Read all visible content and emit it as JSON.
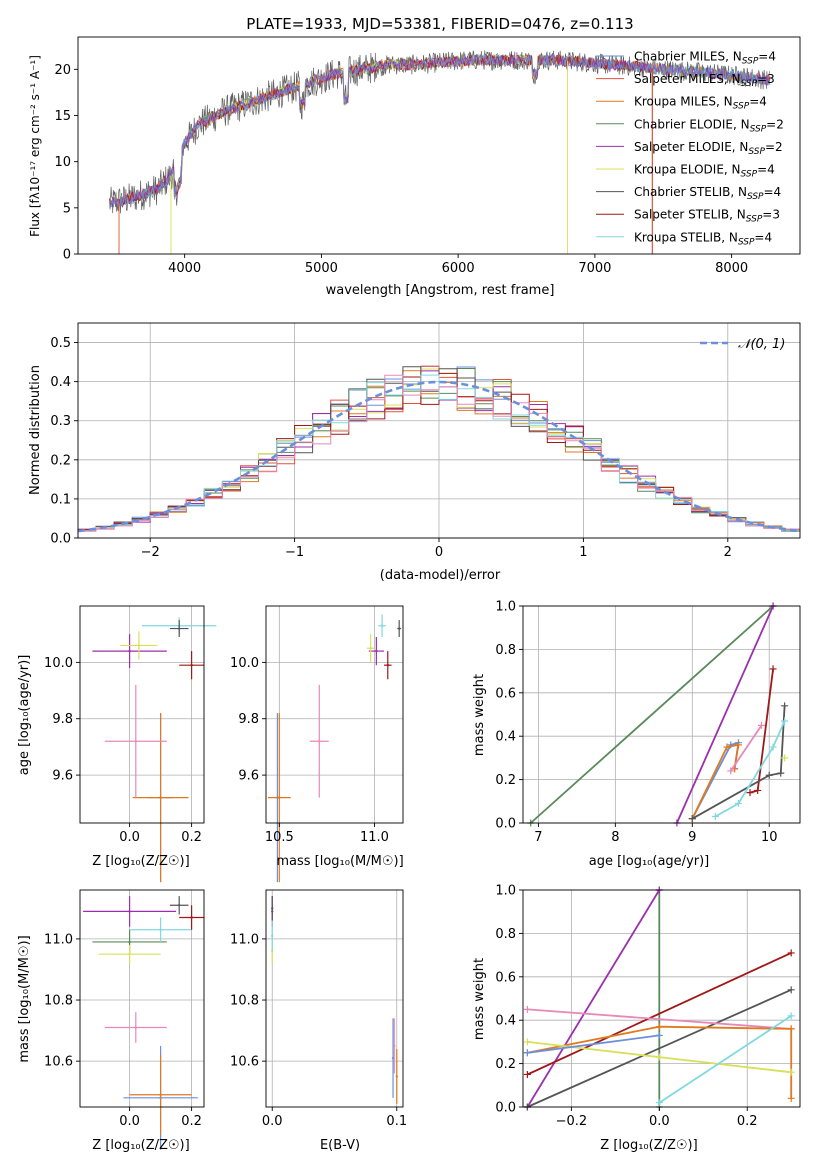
{
  "colors": {
    "chabrier_miles": "#6a8fdc",
    "salpeter_miles": "#e0533a",
    "kroupa_miles": "#e07a1f",
    "chabrier_elodie": "#5a8a5a",
    "salpeter_elodie": "#9b2fae",
    "kroupa_elodie": "#d8e05a",
    "chabrier_stelib": "#555555",
    "salpeter_stelib": "#a01818",
    "kroupa_stelib": "#80d8e0",
    "pink": "#e888b8",
    "grid": "#b0b0b0"
  },
  "chart_data": [
    {
      "id": "spectrum",
      "type": "line",
      "title": "PLATE=1933, MJD=53381, FIBERID=0476, z=0.113",
      "xlabel": "wavelength [Angstrom, rest frame]",
      "ylabel": "Flux [fλ10⁻¹⁷ erg cm⁻² s⁻¹ A⁻¹]",
      "xlim": [
        3220,
        8500
      ],
      "ylim": [
        0,
        23.5
      ],
      "xticks": [
        4000,
        5000,
        6000,
        7000,
        8000
      ],
      "yticks": [
        0,
        5,
        10,
        15,
        20
      ],
      "grid": false,
      "legend_position": "top-right",
      "legend": [
        "Chabrier MILES, N_SSP=4",
        "Salpeter MILES, N_SSP=3",
        "Kroupa MILES, N_SSP=4",
        "Chabrier ELODIE, N_SSP=2",
        "Salpeter ELODIE, N_SSP=2",
        "Kroupa ELODIE, N_SSP=4",
        "Chabrier STELIB, N_SSP=4",
        "Salpeter STELIB, N_SSP=3",
        "Kroupa STELIB, N_SSP=4"
      ],
      "continuum": {
        "x": [
          3450,
          3600,
          3800,
          3900,
          4000,
          4100,
          4300,
          4500,
          4700,
          4900,
          5100,
          5300,
          5500,
          5700,
          5900,
          6100,
          6300,
          6500,
          6700,
          6900,
          7100,
          7300,
          7500,
          7700,
          7900,
          8100,
          8280
        ],
        "y": [
          5.5,
          6.0,
          7.0,
          8.5,
          12.0,
          14.0,
          15.5,
          16.5,
          17.5,
          18.5,
          19.5,
          20.0,
          20.5,
          20.5,
          20.8,
          21.0,
          21.0,
          21.0,
          21.0,
          20.8,
          20.5,
          20.3,
          20.0,
          19.8,
          19.5,
          19.2,
          18.8
        ]
      }
    },
    {
      "id": "residuals",
      "type": "histogram",
      "xlabel": "(data-model)/error",
      "ylabel": "Normed distribution",
      "xlim": [
        -2.5,
        2.5
      ],
      "ylim": [
        0,
        0.55
      ],
      "xticks": [
        -2,
        -1,
        0,
        1,
        2
      ],
      "yticks": [
        0.0,
        0.1,
        0.2,
        0.3,
        0.4,
        0.5
      ],
      "grid": true,
      "legend": [
        "𝒩(0, 1)"
      ],
      "legend_position": "top-right",
      "reference_curve": "N(0,1)"
    },
    {
      "id": "age_vs_Z",
      "type": "scatter",
      "xlabel": "Z [log₁₀(Z/Z☉)]",
      "ylabel": "age  [log₁₀(age/yr)]",
      "xlim": [
        -0.16,
        0.24
      ],
      "ylim": [
        9.43,
        10.2
      ],
      "xticks": [
        0.0,
        0.2
      ],
      "yticks": [
        9.6,
        9.8,
        10.0
      ],
      "grid": true,
      "points": [
        {
          "c": "chabrier_miles",
          "x": 0.1,
          "y": 9.52,
          "xerr": 0.04,
          "yerr": 0.3
        },
        {
          "c": "kroupa_miles",
          "x": 0.1,
          "y": 9.52,
          "xerr": 0.09,
          "yerr": 0.3
        },
        {
          "c": "pink",
          "x": 0.02,
          "y": 9.72,
          "xerr": 0.1,
          "yerr": 0.2
        },
        {
          "c": "salpeter_elodie",
          "x": 0.0,
          "y": 10.04,
          "xerr": 0.12,
          "yerr": 0.06
        },
        {
          "c": "kroupa_elodie",
          "x": 0.03,
          "y": 10.06,
          "xerr": 0.06,
          "yerr": 0.05
        },
        {
          "c": "kroupa_stelib",
          "x": 0.16,
          "y": 10.13,
          "xerr": 0.12,
          "yerr": 0.03
        },
        {
          "c": "chabrier_stelib",
          "x": 0.16,
          "y": 10.12,
          "xerr": 0.03,
          "yerr": 0.03
        },
        {
          "c": "salpeter_stelib",
          "x": 0.2,
          "y": 9.99,
          "xerr": 0.04,
          "yerr": 0.05
        }
      ]
    },
    {
      "id": "age_vs_mass",
      "type": "scatter",
      "xlabel": "mass [log₁₀(M/M☉)]",
      "ylabel": "",
      "xlim": [
        10.43,
        11.15
      ],
      "ylim": [
        9.43,
        10.2
      ],
      "xticks": [
        10.5,
        11.0
      ],
      "yticks": [
        9.6,
        9.8,
        10.0
      ],
      "grid": true,
      "points": [
        {
          "c": "chabrier_miles",
          "x": 10.49,
          "y": 9.52,
          "xerr": 0.01,
          "yerr": 0.3
        },
        {
          "c": "kroupa_miles",
          "x": 10.5,
          "y": 9.52,
          "xerr": 0.06,
          "yerr": 0.3
        },
        {
          "c": "pink",
          "x": 10.71,
          "y": 9.72,
          "xerr": 0.05,
          "yerr": 0.2
        },
        {
          "c": "salpeter_elodie",
          "x": 11.01,
          "y": 10.04,
          "xerr": 0.04,
          "yerr": 0.05
        },
        {
          "c": "kroupa_elodie",
          "x": 10.98,
          "y": 10.05,
          "xerr": 0.02,
          "yerr": 0.05
        },
        {
          "c": "kroupa_stelib",
          "x": 11.04,
          "y": 10.13,
          "xerr": 0.02,
          "yerr": 0.04
        },
        {
          "c": "chabrier_stelib",
          "x": 11.13,
          "y": 10.12,
          "xerr": 0.01,
          "yerr": 0.03
        },
        {
          "c": "salpeter_stelib",
          "x": 11.07,
          "y": 9.99,
          "xerr": 0.02,
          "yerr": 0.05
        }
      ]
    },
    {
      "id": "weight_vs_age",
      "type": "line",
      "xlabel": "age  [log₁₀(age/yr)]",
      "ylabel": "mass weight",
      "xlim": [
        6.8,
        10.4
      ],
      "ylim": [
        0,
        1.0
      ],
      "xticks": [
        7,
        8,
        9,
        10
      ],
      "yticks": [
        0.0,
        0.2,
        0.4,
        0.6,
        0.8,
        1.0
      ],
      "grid": true,
      "series": [
        {
          "c": "chabrier_elodie",
          "x": [
            6.9,
            10.05
          ],
          "y": [
            0.0,
            1.0
          ]
        },
        {
          "c": "salpeter_elodie",
          "x": [
            8.8,
            10.05
          ],
          "y": [
            0.0,
            1.0
          ]
        },
        {
          "c": "chabrier_miles",
          "x": [
            9.0,
            9.5,
            9.6,
            9.55
          ],
          "y": [
            0.02,
            0.36,
            0.37,
            0.25
          ]
        },
        {
          "c": "kroupa_miles",
          "x": [
            9.0,
            9.45,
            9.6,
            9.55
          ],
          "y": [
            0.02,
            0.35,
            0.36,
            0.25
          ]
        },
        {
          "c": "pink",
          "x": [
            9.5,
            9.9
          ],
          "y": [
            0.24,
            0.45
          ]
        },
        {
          "c": "salpeter_stelib",
          "x": [
            9.75,
            9.85,
            10.05
          ],
          "y": [
            0.14,
            0.15,
            0.71
          ]
        },
        {
          "c": "chabrier_stelib",
          "x": [
            9.0,
            10.0,
            10.15,
            10.2
          ],
          "y": [
            0.02,
            0.22,
            0.23,
            0.54
          ]
        },
        {
          "c": "kroupa_stelib",
          "x": [
            9.3,
            9.6,
            10.05,
            10.2
          ],
          "y": [
            0.03,
            0.09,
            0.35,
            0.47
          ]
        },
        {
          "c": "kroupa_elodie",
          "x": [
            10.2
          ],
          "y": [
            0.3
          ]
        }
      ]
    },
    {
      "id": "mass_vs_Z",
      "type": "scatter",
      "xlabel": "Z [log₁₀(Z/Z☉)]",
      "ylabel": "mass [log₁₀(M/M☉)]",
      "xlim": [
        -0.16,
        0.24
      ],
      "ylim": [
        10.45,
        11.16
      ],
      "xticks": [
        0.0,
        0.2
      ],
      "yticks": [
        10.6,
        10.8,
        11.0
      ],
      "grid": true,
      "points": [
        {
          "c": "chabrier_miles",
          "x": 0.1,
          "y": 10.48,
          "xerr": 0.12,
          "yerr": 0.17
        },
        {
          "c": "kroupa_miles",
          "x": 0.1,
          "y": 10.49,
          "xerr": 0.1,
          "yerr": 0.13
        },
        {
          "c": "pink",
          "x": 0.02,
          "y": 10.71,
          "xerr": 0.1,
          "yerr": 0.05
        },
        {
          "c": "salpeter_elodie",
          "x": 0.0,
          "y": 11.09,
          "xerr": 0.15,
          "yerr": 0.05
        },
        {
          "c": "chabrier_elodie",
          "x": 0.0,
          "y": 10.99,
          "xerr": 0.12,
          "yerr": 0.04
        },
        {
          "c": "kroupa_elodie",
          "x": 0.0,
          "y": 10.95,
          "xerr": 0.1,
          "yerr": 0.03
        },
        {
          "c": "kroupa_stelib",
          "x": 0.1,
          "y": 11.03,
          "xerr": 0.1,
          "yerr": 0.04
        },
        {
          "c": "chabrier_stelib",
          "x": 0.16,
          "y": 11.11,
          "xerr": 0.03,
          "yerr": 0.03
        },
        {
          "c": "salpeter_stelib",
          "x": 0.2,
          "y": 11.07,
          "xerr": 0.04,
          "yerr": 0.04
        }
      ]
    },
    {
      "id": "mass_vs_ebv",
      "type": "scatter",
      "xlabel": "E(B-V)",
      "ylabel": "",
      "xlim": [
        -0.005,
        0.105
      ],
      "ylim": [
        10.45,
        11.16
      ],
      "xticks": [
        0.0,
        0.1
      ],
      "yticks": [
        10.6,
        10.8,
        11.0
      ],
      "grid": true,
      "points": [
        {
          "c": "chabrier_miles",
          "x": 0.097,
          "y": 10.61,
          "xerr": 0.0,
          "yerr": 0.13
        },
        {
          "c": "kroupa_miles",
          "x": 0.1,
          "y": 10.55,
          "xerr": 0.0,
          "yerr": 0.09
        },
        {
          "c": "pink",
          "x": 0.098,
          "y": 10.65,
          "xerr": 0.0,
          "yerr": 0.09
        },
        {
          "c": "salpeter_elodie",
          "x": 0.0,
          "y": 11.09,
          "xerr": 0.0,
          "yerr": 0.05
        },
        {
          "c": "kroupa_elodie",
          "x": 0.0,
          "y": 10.96,
          "xerr": 0.0,
          "yerr": 0.04
        },
        {
          "c": "chabrier_stelib",
          "x": 0.0,
          "y": 11.1,
          "xerr": 0.0,
          "yerr": 0.04
        },
        {
          "c": "kroupa_stelib",
          "x": 0.0,
          "y": 11.01,
          "xerr": 0.0,
          "yerr": 0.05
        }
      ]
    },
    {
      "id": "weight_vs_Z",
      "type": "line",
      "xlabel": "Z [log₁₀(Z/Z☉)]",
      "ylabel": "mass weight",
      "xlim": [
        -0.31,
        0.32
      ],
      "ylim": [
        0,
        1.0
      ],
      "xticks": [
        -0.2,
        0.0,
        0.2
      ],
      "yticks": [
        0.0,
        0.2,
        0.4,
        0.6,
        0.8,
        1.0
      ],
      "grid": true,
      "series": [
        {
          "c": "chabrier_elodie",
          "x": [
            0.0,
            0.0
          ],
          "y": [
            1.0,
            0.0
          ]
        },
        {
          "c": "salpeter_elodie",
          "x": [
            -0.3,
            0.0
          ],
          "y": [
            0.0,
            1.0
          ]
        },
        {
          "c": "salpeter_stelib",
          "x": [
            -0.3,
            0.3
          ],
          "y": [
            0.15,
            0.71
          ]
        },
        {
          "c": "chabrier_stelib",
          "x": [
            -0.3,
            0.3
          ],
          "y": [
            0.0,
            0.54
          ]
        },
        {
          "c": "pink",
          "x": [
            -0.3,
            0.3
          ],
          "y": [
            0.45,
            0.36
          ]
        },
        {
          "c": "kroupa_miles",
          "x": [
            -0.3,
            0.0,
            0.3,
            0.3
          ],
          "y": [
            0.25,
            0.37,
            0.36,
            0.04
          ]
        },
        {
          "c": "kroupa_elodie",
          "x": [
            -0.3,
            0.0,
            0.3
          ],
          "y": [
            0.3,
            0.23,
            0.16
          ]
        },
        {
          "c": "kroupa_stelib",
          "x": [
            0.0,
            0.3
          ],
          "y": [
            0.02,
            0.42
          ]
        },
        {
          "c": "chabrier_miles",
          "x": [
            -0.3,
            0.0
          ],
          "y": [
            0.25,
            0.33
          ]
        }
      ]
    }
  ]
}
